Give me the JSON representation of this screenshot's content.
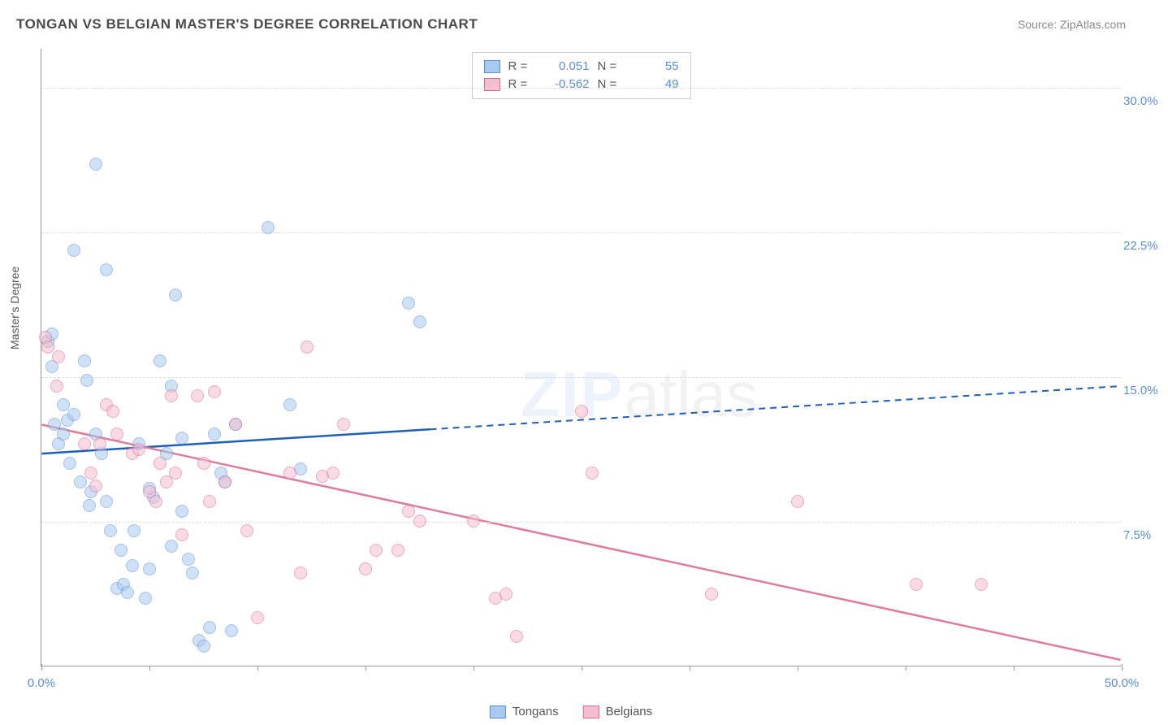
{
  "title": "TONGAN VS BELGIAN MASTER'S DEGREE CORRELATION CHART",
  "source_label": "Source: ",
  "source_name": "ZipAtlas.com",
  "ylabel": "Master's Degree",
  "watermark_zip": "ZIP",
  "watermark_atlas": "atlas",
  "chart": {
    "type": "scatter",
    "xlim": [
      0,
      50
    ],
    "ylim": [
      0,
      32
    ],
    "x_axis_pct": true,
    "y_axis_pct": true,
    "grid_y": [
      7.5,
      15.0,
      22.5,
      30.0
    ],
    "grid_color": "#dddddd",
    "axis_color": "#999999",
    "background_color": "#ffffff",
    "ytick_labels": [
      "7.5%",
      "15.0%",
      "22.5%",
      "30.0%"
    ],
    "ytick_color": "#5a8fd6",
    "ytick_fontsize": 15,
    "xtick_major": [
      0,
      50
    ],
    "xtick_minor": [
      5,
      10,
      15,
      20,
      25,
      30,
      35,
      40,
      45
    ],
    "xtick_labels": [
      "0.0%",
      "50.0%"
    ],
    "marker_radius": 8,
    "marker_opacity": 0.55,
    "series": [
      {
        "name": "Tongans",
        "fill": "#a8caf0",
        "stroke": "#5a8fd6",
        "points": [
          [
            0.3,
            16.8
          ],
          [
            0.5,
            17.2
          ],
          [
            0.5,
            15.5
          ],
          [
            0.6,
            12.5
          ],
          [
            0.8,
            11.5
          ],
          [
            1.0,
            12.0
          ],
          [
            1.0,
            13.5
          ],
          [
            1.2,
            12.7
          ],
          [
            1.3,
            10.5
          ],
          [
            1.5,
            13.0
          ],
          [
            1.5,
            21.5
          ],
          [
            2.0,
            15.8
          ],
          [
            2.1,
            14.8
          ],
          [
            2.2,
            8.3
          ],
          [
            2.3,
            9.0
          ],
          [
            2.5,
            26.0
          ],
          [
            3.0,
            20.5
          ],
          [
            3.0,
            8.5
          ],
          [
            3.2,
            7.0
          ],
          [
            3.5,
            4.0
          ],
          [
            3.8,
            4.2
          ],
          [
            4.0,
            3.8
          ],
          [
            4.2,
            5.2
          ],
          [
            4.5,
            11.5
          ],
          [
            4.8,
            3.5
          ],
          [
            5.0,
            5.0
          ],
          [
            5.2,
            8.7
          ],
          [
            5.5,
            15.8
          ],
          [
            5.8,
            11.0
          ],
          [
            6.0,
            6.2
          ],
          [
            6.2,
            19.2
          ],
          [
            6.5,
            11.8
          ],
          [
            6.8,
            5.5
          ],
          [
            7.0,
            4.8
          ],
          [
            7.3,
            1.3
          ],
          [
            7.5,
            1.0
          ],
          [
            7.8,
            2.0
          ],
          [
            8.0,
            12.0
          ],
          [
            8.3,
            10.0
          ],
          [
            8.5,
            9.5
          ],
          [
            8.8,
            1.8
          ],
          [
            9.0,
            12.5
          ],
          [
            10.5,
            22.7
          ],
          [
            11.5,
            13.5
          ],
          [
            12.0,
            10.2
          ],
          [
            17.0,
            18.8
          ],
          [
            17.5,
            17.8
          ],
          [
            5.0,
            9.2
          ],
          [
            4.3,
            7.0
          ],
          [
            3.7,
            6.0
          ],
          [
            2.8,
            11.0
          ],
          [
            2.5,
            12.0
          ],
          [
            1.8,
            9.5
          ],
          [
            6.0,
            14.5
          ],
          [
            6.5,
            8.0
          ]
        ],
        "trend": {
          "x1": 0,
          "y1": 11.0,
          "x2": 50,
          "y2": 14.5,
          "solid_until_x": 18,
          "color": "#1f5fb8",
          "width": 2.5
        }
      },
      {
        "name": "Belgians",
        "fill": "#f5bdd0",
        "stroke": "#d66a8f",
        "points": [
          [
            0.2,
            17.0
          ],
          [
            0.3,
            16.5
          ],
          [
            0.7,
            14.5
          ],
          [
            0.8,
            16.0
          ],
          [
            2.0,
            11.5
          ],
          [
            2.3,
            10.0
          ],
          [
            2.5,
            9.3
          ],
          [
            2.7,
            11.5
          ],
          [
            3.0,
            13.5
          ],
          [
            3.3,
            13.2
          ],
          [
            3.5,
            12.0
          ],
          [
            4.2,
            11.0
          ],
          [
            4.5,
            11.2
          ],
          [
            5.0,
            9.0
          ],
          [
            5.5,
            10.5
          ],
          [
            5.8,
            9.5
          ],
          [
            6.0,
            14.0
          ],
          [
            6.2,
            10.0
          ],
          [
            6.5,
            6.8
          ],
          [
            7.2,
            14.0
          ],
          [
            7.5,
            10.5
          ],
          [
            7.8,
            8.5
          ],
          [
            8.0,
            14.2
          ],
          [
            8.5,
            9.5
          ],
          [
            9.0,
            12.5
          ],
          [
            9.5,
            7.0
          ],
          [
            10.0,
            2.5
          ],
          [
            11.5,
            10.0
          ],
          [
            12.0,
            4.8
          ],
          [
            12.3,
            16.5
          ],
          [
            13.0,
            9.8
          ],
          [
            13.5,
            10.0
          ],
          [
            14.0,
            12.5
          ],
          [
            15.0,
            5.0
          ],
          [
            15.5,
            6.0
          ],
          [
            16.5,
            6.0
          ],
          [
            17.0,
            8.0
          ],
          [
            17.5,
            7.5
          ],
          [
            20.0,
            7.5
          ],
          [
            21.0,
            3.5
          ],
          [
            21.5,
            3.7
          ],
          [
            22.0,
            1.5
          ],
          [
            25.0,
            13.2
          ],
          [
            25.5,
            10.0
          ],
          [
            31.0,
            3.7
          ],
          [
            35.0,
            8.5
          ],
          [
            40.5,
            4.2
          ],
          [
            43.5,
            4.2
          ],
          [
            5.3,
            8.5
          ]
        ],
        "trend": {
          "x1": 0,
          "y1": 12.5,
          "x2": 50,
          "y2": 0.3,
          "solid_until_x": 50,
          "color": "#e07ba0",
          "width": 2.5
        }
      }
    ]
  },
  "legend_top": {
    "rows": [
      {
        "swatch_fill": "#a8caf0",
        "swatch_stroke": "#5a8fd6",
        "r_label": "R =",
        "r_value": "0.051",
        "n_label": "N =",
        "n_value": "55"
      },
      {
        "swatch_fill": "#f5bdd0",
        "swatch_stroke": "#d66a8f",
        "r_label": "R =",
        "r_value": "-0.562",
        "n_label": "N =",
        "n_value": "49"
      }
    ]
  },
  "legend_bottom": {
    "items": [
      {
        "swatch_fill": "#a8caf0",
        "swatch_stroke": "#5a8fd6",
        "label": "Tongans"
      },
      {
        "swatch_fill": "#f5bdd0",
        "swatch_stroke": "#d66a8f",
        "label": "Belgians"
      }
    ]
  }
}
